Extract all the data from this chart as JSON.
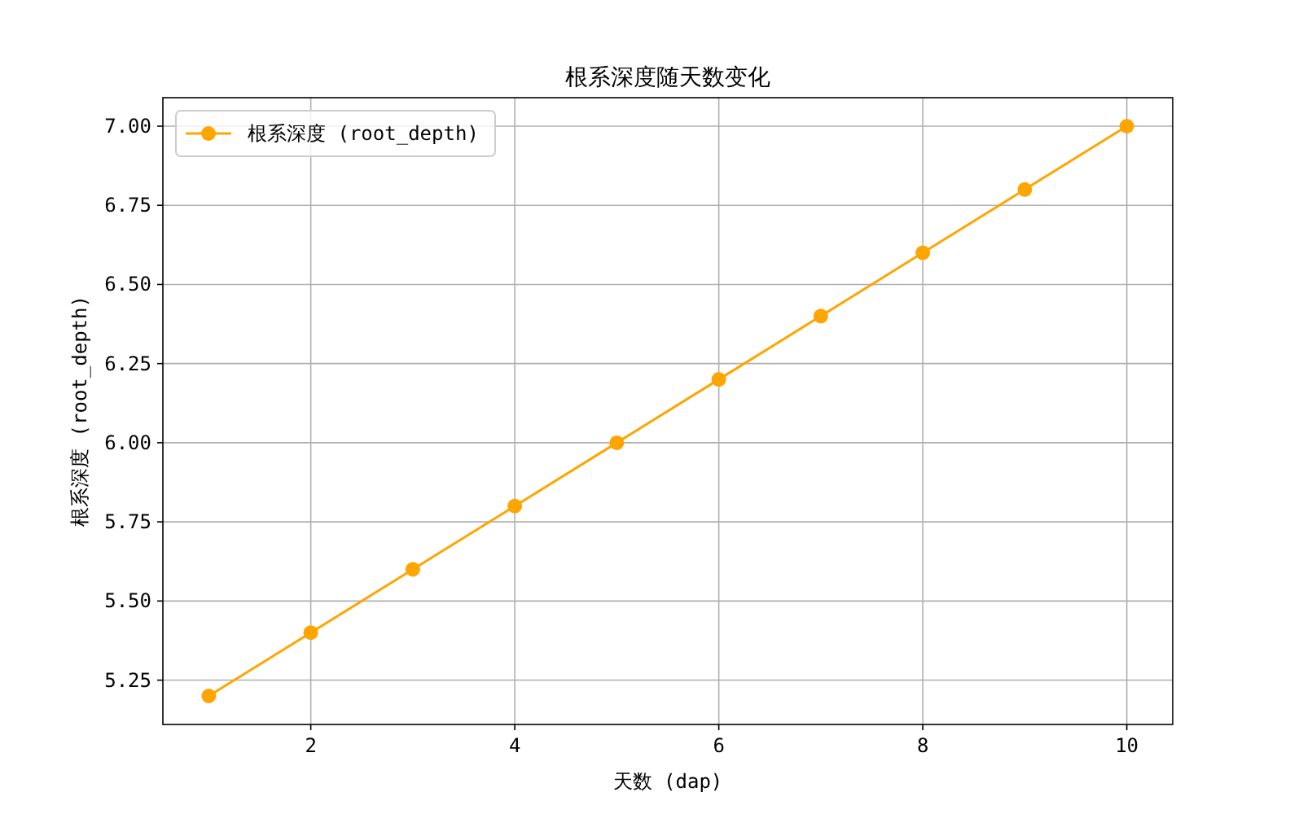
{
  "chart_data": {
    "type": "line",
    "title": "根系深度随天数变化",
    "xlabel": "天数 (dap)",
    "ylabel": "根系深度 (root_depth)",
    "x": [
      1,
      2,
      3,
      4,
      5,
      6,
      7,
      8,
      9,
      10
    ],
    "series": [
      {
        "name": "根系深度 (root_depth)",
        "color": "#ffa500",
        "values": [
          5.2,
          5.4,
          5.6,
          5.8,
          6.0,
          6.2,
          6.4,
          6.6,
          6.8,
          7.0
        ]
      }
    ],
    "xlim": [
      0.55,
      10.45
    ],
    "ylim": [
      5.11,
      7.09
    ],
    "xticks": [
      2,
      4,
      6,
      8,
      10
    ],
    "yticks": [
      {
        "value": 5.25,
        "label": "5.25"
      },
      {
        "value": 5.5,
        "label": "5.50"
      },
      {
        "value": 5.75,
        "label": "5.75"
      },
      {
        "value": 6,
        "label": "6.00"
      },
      {
        "value": 6.25,
        "label": "6.25"
      },
      {
        "value": 6.5,
        "label": "6.50"
      },
      {
        "value": 6.75,
        "label": "6.75"
      },
      {
        "value": 7,
        "label": "7.00"
      }
    ],
    "grid": true,
    "legend": "top left",
    "marker": "circle",
    "line_style": "solid"
  }
}
